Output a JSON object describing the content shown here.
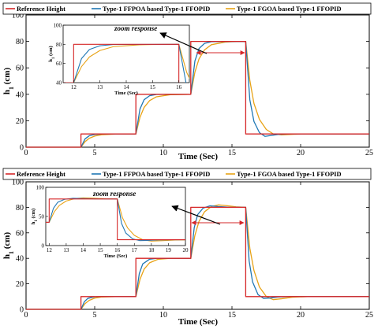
{
  "chart_data": [
    {
      "type": "line",
      "ylabel": "h",
      "ylabel_sub": "1",
      "ylabel_unit": " (cm)",
      "xlabel": "Time (Sec)",
      "xlim": [
        0,
        25
      ],
      "ylim": [
        0,
        100
      ],
      "xticks": [
        0,
        5,
        10,
        15,
        20,
        25
      ],
      "yticks": [
        0,
        20,
        40,
        60,
        80,
        100
      ],
      "legend": {
        "position": "top",
        "entries": [
          "Reference Height",
          "Type-1 FFPOA based Type-1 FFOPID",
          "Type-1 FGOA based Type-1 FFOPID"
        ]
      },
      "series": [
        {
          "name": "Reference Height",
          "color": "#d62728",
          "points": [
            [
              0,
              0
            ],
            [
              4,
              0
            ],
            [
              4,
              10
            ],
            [
              8,
              10
            ],
            [
              8,
              40
            ],
            [
              12,
              40
            ],
            [
              12,
              80
            ],
            [
              16,
              80
            ],
            [
              16,
              10
            ],
            [
              25,
              10
            ]
          ]
        },
        {
          "name": "Type-1 FFPOA based Type-1 FFOPID",
          "color": "#1f77b4",
          "points": [
            [
              0,
              0
            ],
            [
              4,
              0
            ],
            [
              4.3,
              6.3
            ],
            [
              4.6,
              8.6
            ],
            [
              5,
              9.6
            ],
            [
              5.5,
              9.95
            ],
            [
              8,
              10
            ],
            [
              8.3,
              28.9
            ],
            [
              8.6,
              35.9
            ],
            [
              9,
              38.9
            ],
            [
              9.5,
              39.9
            ],
            [
              12,
              40
            ],
            [
              12.3,
              65.2
            ],
            [
              12.6,
              74.6
            ],
            [
              13,
              78.5
            ],
            [
              13.5,
              79.8
            ],
            [
              16,
              80
            ],
            [
              16.3,
              35.9
            ],
            [
              16.6,
              19.5
            ],
            [
              17,
              11
            ],
            [
              17.4,
              8.2
            ],
            [
              17.8,
              8.8
            ],
            [
              18.4,
              9.7
            ],
            [
              19.2,
              10
            ],
            [
              25,
              10
            ]
          ]
        },
        {
          "name": "Type-1 FGOA based Type-1 FFOPID",
          "color": "#e8a317",
          "points": [
            [
              0,
              0
            ],
            [
              4,
              0
            ],
            [
              4.3,
              4.2
            ],
            [
              4.6,
              6.7
            ],
            [
              5,
              8.4
            ],
            [
              5.5,
              9.4
            ],
            [
              6.5,
              9.9
            ],
            [
              8,
              10
            ],
            [
              8.3,
              22.6
            ],
            [
              8.6,
              30.1
            ],
            [
              9,
              35.2
            ],
            [
              9.5,
              38.1
            ],
            [
              10.5,
              39.7
            ],
            [
              12,
              40
            ],
            [
              12.3,
              56.8
            ],
            [
              12.6,
              66.8
            ],
            [
              13,
              73.6
            ],
            [
              13.5,
              77.5
            ],
            [
              14.5,
              79.5
            ],
            [
              15,
              79.8
            ],
            [
              16,
              80
            ],
            [
              16.3,
              50.6
            ],
            [
              16.6,
              33.1
            ],
            [
              17,
              21
            ],
            [
              17.5,
              13.4
            ],
            [
              18,
              10.1
            ],
            [
              18.6,
              9.3
            ],
            [
              19.5,
              9.8
            ],
            [
              20.5,
              10
            ],
            [
              25,
              10
            ]
          ]
        }
      ],
      "annotation": {
        "text": "zoom response"
      },
      "inset": {
        "xlabel": "Time (Sec)",
        "ylabel": "h",
        "ylabel_sub": "1",
        "ylabel_unit": " (cm)",
        "xlim": [
          11.6,
          16.4
        ],
        "ylim": [
          40,
          100
        ],
        "xticks": [
          12,
          13,
          14,
          15,
          16
        ],
        "yticks": [
          40,
          60,
          80,
          100
        ]
      }
    },
    {
      "type": "line",
      "ylabel": "h",
      "ylabel_sub": "1",
      "ylabel_unit": " (cm)",
      "xlabel": "Time (Sec)",
      "xlim": [
        0,
        25
      ],
      "ylim": [
        0,
        100
      ],
      "xticks": [
        0,
        5,
        10,
        15,
        20,
        25
      ],
      "yticks": [
        0,
        20,
        40,
        60,
        80,
        100
      ],
      "legend": {
        "position": "top",
        "entries": [
          "Reference Height",
          "Type-1 FFPOA based Type-1 FFOPID",
          "Type-1 FGOA based Type-1 FFOPID"
        ]
      },
      "series": [
        {
          "name": "Reference Height",
          "color": "#d62728",
          "points": [
            [
              0,
              0
            ],
            [
              4,
              0
            ],
            [
              4,
              10
            ],
            [
              8,
              10
            ],
            [
              8,
              40
            ],
            [
              12,
              40
            ],
            [
              12,
              80
            ],
            [
              16,
              80
            ],
            [
              16,
              10
            ],
            [
              25,
              10
            ]
          ]
        },
        {
          "name": "Type-1 FFPOA based Type-1 FFOPID",
          "color": "#1f77b4",
          "points": [
            [
              0,
              0
            ],
            [
              4,
              0
            ],
            [
              4.25,
              6
            ],
            [
              4.5,
              8.6
            ],
            [
              5,
              9.8
            ],
            [
              5.5,
              10
            ],
            [
              8,
              10
            ],
            [
              8.25,
              28
            ],
            [
              8.5,
              35.6
            ],
            [
              9,
              39.3
            ],
            [
              9.5,
              40
            ],
            [
              12,
              40
            ],
            [
              12.25,
              64
            ],
            [
              12.5,
              74.3
            ],
            [
              12.9,
              79.4
            ],
            [
              13.4,
              81.2
            ],
            [
              14,
              80.6
            ],
            [
              14.8,
              80.1
            ],
            [
              16,
              80
            ],
            [
              16.25,
              38
            ],
            [
              16.5,
              21.5
            ],
            [
              16.9,
              11.5
            ],
            [
              17.3,
              8.6
            ],
            [
              17.8,
              8.9
            ],
            [
              18.4,
              9.7
            ],
            [
              19.2,
              10
            ],
            [
              25,
              10
            ]
          ]
        },
        {
          "name": "Type-1 FGOA based Type-1 FFOPID",
          "color": "#e8a317",
          "points": [
            [
              0,
              0
            ],
            [
              4,
              0
            ],
            [
              4.3,
              4.5
            ],
            [
              4.6,
              7
            ],
            [
              5,
              8.8
            ],
            [
              5.5,
              9.7
            ],
            [
              6.5,
              10
            ],
            [
              8,
              10
            ],
            [
              8.3,
              23.5
            ],
            [
              8.6,
              31.5
            ],
            [
              9,
              36.5
            ],
            [
              9.6,
              39.2
            ],
            [
              10.5,
              40
            ],
            [
              12,
              40
            ],
            [
              12.3,
              58
            ],
            [
              12.6,
              69
            ],
            [
              13,
              76.5
            ],
            [
              13.5,
              80.6
            ],
            [
              14,
              81.9
            ],
            [
              14.6,
              81.3
            ],
            [
              15.3,
              80.4
            ],
            [
              16,
              80
            ],
            [
              16.3,
              48
            ],
            [
              16.6,
              30.5
            ],
            [
              17,
              17.5
            ],
            [
              17.5,
              10
            ],
            [
              18,
              7.6
            ],
            [
              18.6,
              8.3
            ],
            [
              19.4,
              9.5
            ],
            [
              20.5,
              10
            ],
            [
              25,
              10
            ]
          ]
        }
      ],
      "annotation": {
        "text": "zoom response"
      },
      "inset": {
        "xlabel": "Time (Sec)",
        "ylabel": "h",
        "ylabel_sub": "1",
        "ylabel_unit": " (cm)",
        "xlim": [
          11.8,
          20
        ],
        "ylim": [
          0,
          100
        ],
        "xticks": [
          12,
          13,
          14,
          15,
          16,
          17,
          18,
          19,
          20
        ],
        "yticks": [
          0,
          50,
          100
        ]
      }
    }
  ]
}
